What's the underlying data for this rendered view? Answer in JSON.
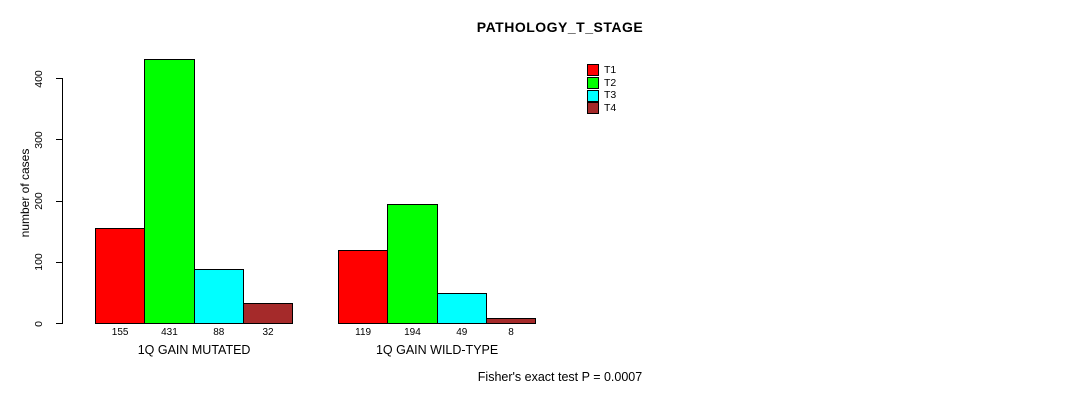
{
  "chart_data": {
    "type": "bar",
    "title": "PATHOLOGY_T_STAGE",
    "ylabel": "number of cases",
    "xlabel": "",
    "ylim": [
      0,
      400
    ],
    "yticks": [
      0,
      100,
      200,
      300,
      400
    ],
    "grid": false,
    "categories": [
      "1Q GAIN MUTATED",
      "1Q GAIN WILD-TYPE"
    ],
    "series": [
      {
        "name": "T1",
        "color": "#ff0000",
        "values": [
          155,
          119
        ]
      },
      {
        "name": "T2",
        "color": "#00ff00",
        "values": [
          431,
          194
        ]
      },
      {
        "name": "T3",
        "color": "#00ffff",
        "values": [
          88,
          49
        ]
      },
      {
        "name": "T4",
        "color": "#a52a2a",
        "values": [
          32,
          8
        ]
      }
    ],
    "bar_value_labels": [
      [
        "155",
        "431",
        "88",
        "32"
      ],
      [
        "119",
        "194",
        "49",
        "8"
      ]
    ],
    "legend": {
      "position": "top-right",
      "entries": [
        "T1",
        "T2",
        "T3",
        "T4"
      ]
    },
    "footnote": "Fisher's exact test P = 0.0007"
  }
}
